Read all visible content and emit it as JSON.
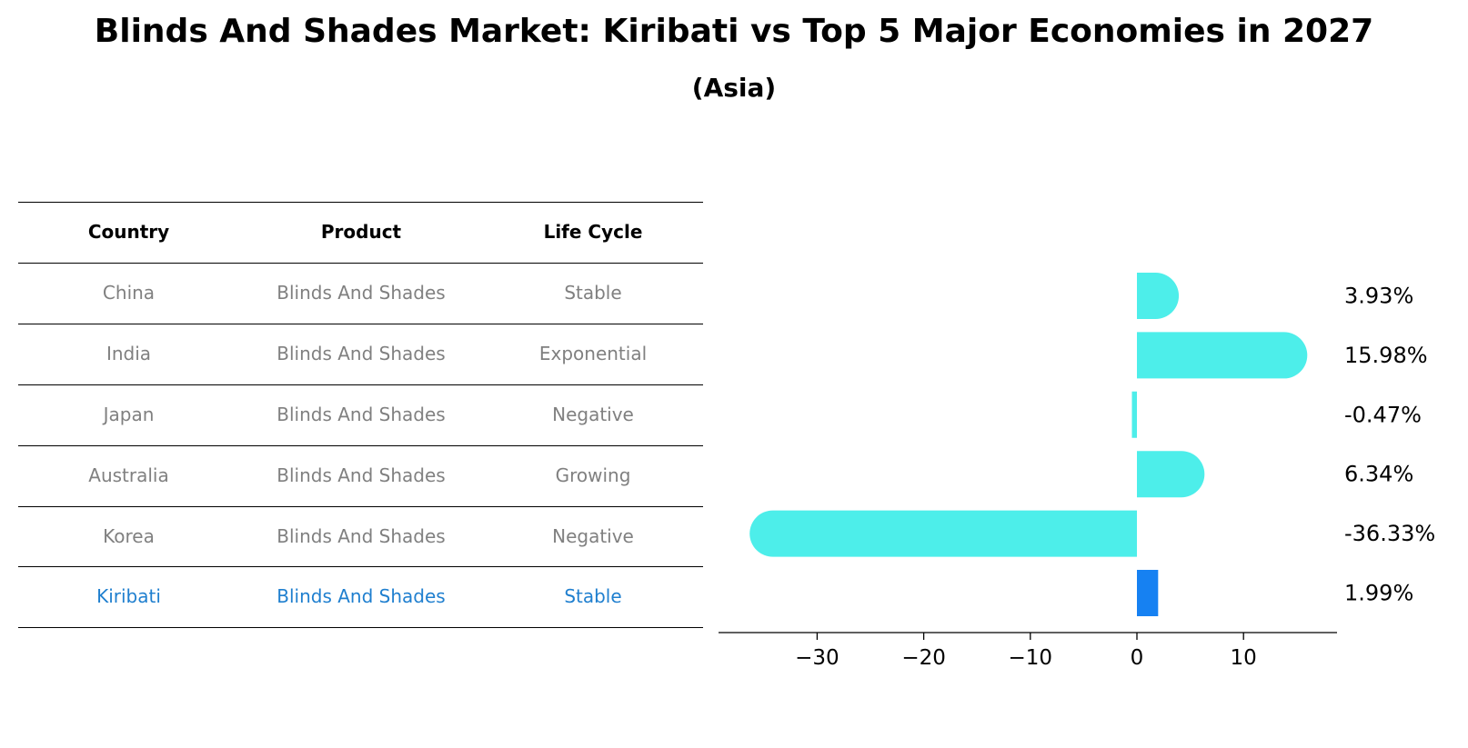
{
  "title": "Blinds And Shades Market: Kiribati vs Top 5 Major Economies in 2027",
  "subtitle": "(Asia)",
  "table": {
    "headers": [
      "Country",
      "Product",
      "Life Cycle"
    ],
    "rows": [
      [
        "China",
        "Blinds And Shades",
        "Stable"
      ],
      [
        "India",
        "Blinds And Shades",
        "Exponential"
      ],
      [
        "Japan",
        "Blinds And Shades",
        "Negative"
      ],
      [
        "Australia",
        "Blinds And Shades",
        "Growing"
      ],
      [
        "Korea",
        "Blinds And Shades",
        "Negative"
      ],
      [
        "Kiribati",
        "Blinds And Shades",
        "Stable"
      ]
    ],
    "highlight_row": 5
  },
  "chart_data": {
    "type": "bar",
    "orientation": "horizontal",
    "categories": [
      "China",
      "India",
      "Japan",
      "Australia",
      "Korea",
      "Kiribati"
    ],
    "values": [
      3.93,
      15.98,
      -0.47,
      6.34,
      -36.33,
      1.99
    ],
    "value_labels": [
      "3.93%",
      "15.98%",
      "-0.47%",
      "6.34%",
      "-36.33%",
      "1.99%"
    ],
    "xlim": [
      -38.5,
      18.5
    ],
    "xticks": [
      -30,
      -20,
      -10,
      0,
      10
    ],
    "xtick_labels": [
      "−30",
      "−20",
      "−10",
      "0",
      "10"
    ],
    "colors": {
      "default": "#4deeea",
      "highlight": "#1681f2"
    },
    "highlight_index": 5
  }
}
